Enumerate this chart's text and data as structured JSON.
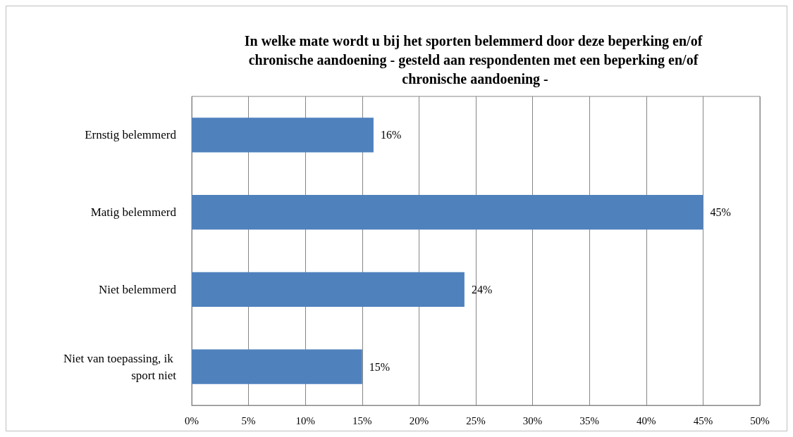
{
  "chart_data": {
    "type": "bar",
    "orientation": "horizontal",
    "title": "In welke mate wordt u bij het sporten belemmerd door deze beperking en/of chronische aandoening - gesteld aan respondenten met een beperking en/of chronische aandoening -",
    "categories": [
      "Ernstig belemmerd",
      "Matig belemmerd",
      "Niet belemmerd",
      "Niet van toepassing, ik sport niet"
    ],
    "values": [
      16,
      45,
      24,
      15
    ],
    "value_labels": [
      "16%",
      "45%",
      "24%",
      "15%"
    ],
    "color": "#4f81bd",
    "xlim": [
      0,
      50
    ],
    "xticks": [
      {
        "value": 0,
        "label": "0%"
      },
      {
        "value": 5,
        "label": "5%"
      },
      {
        "value": 10,
        "label": "10%"
      },
      {
        "value": 15,
        "label": "15%"
      },
      {
        "value": 20,
        "label": "20%"
      },
      {
        "value": 25,
        "label": "25%"
      },
      {
        "value": 30,
        "label": "30%"
      },
      {
        "value": 35,
        "label": "35%"
      },
      {
        "value": 40,
        "label": "40%"
      },
      {
        "value": 45,
        "label": "45%"
      },
      {
        "value": 50,
        "label": "50%"
      }
    ],
    "grid": "x"
  }
}
